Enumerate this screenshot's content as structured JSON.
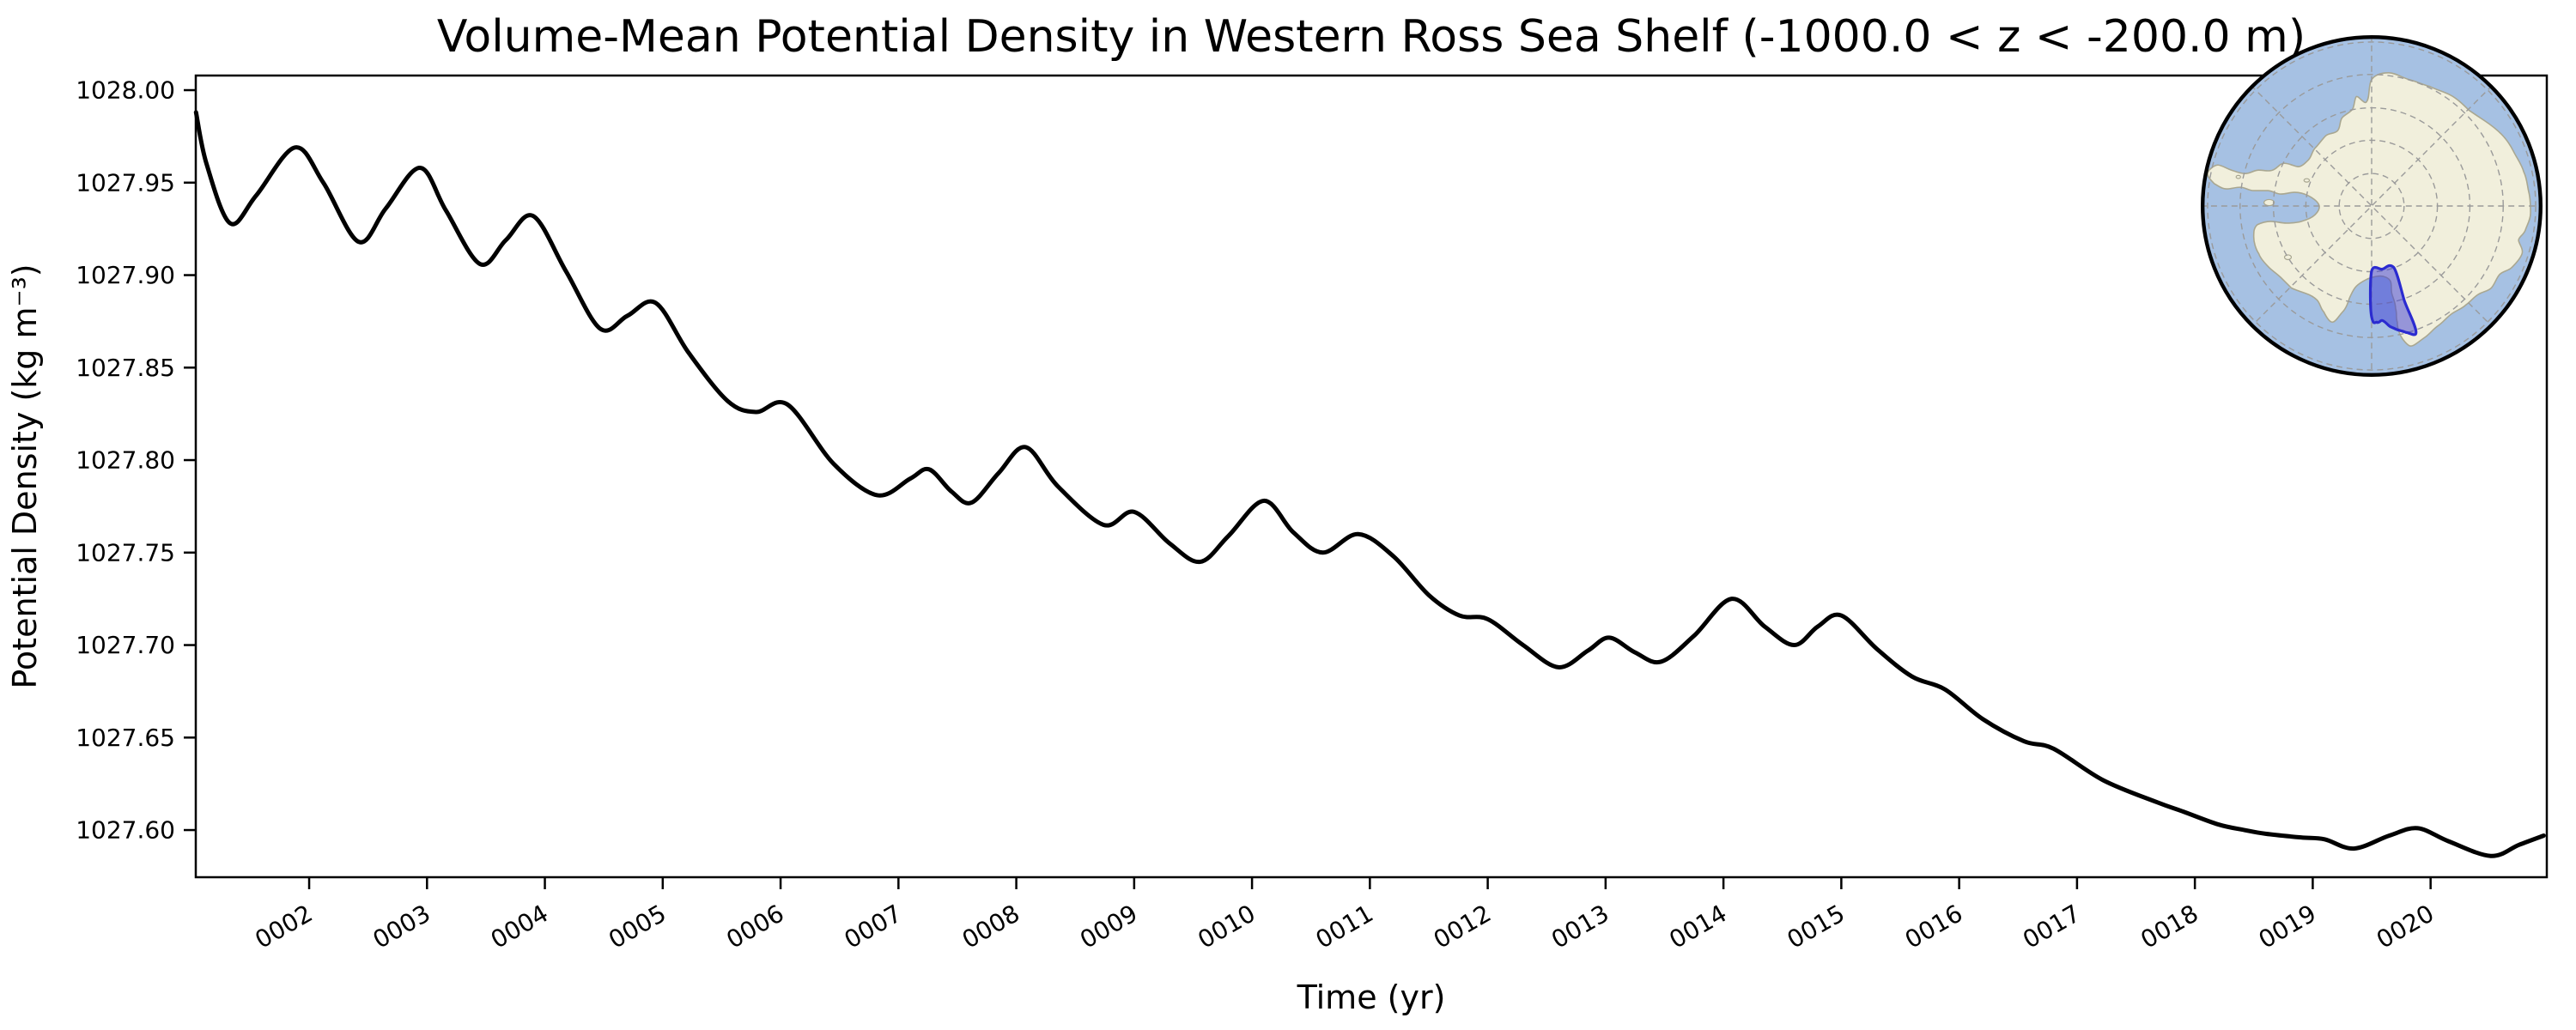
{
  "figure": {
    "background_color": "#ffffff",
    "accent_black": "#000000"
  },
  "chart_data": {
    "type": "line",
    "title": "Volume-Mean Potential Density in Western Ross Sea Shelf (-1000.0 < z < -200.0 m)",
    "xlabel": "Time (yr)",
    "ylabel": "Potential Density (kg m⁻³)",
    "xlim": [
      1.038,
      20.986
    ],
    "ylim": [
      1027.5745,
      1028.0079
    ],
    "grid": false,
    "legend": null,
    "xtick_labels": [
      "0002",
      "0003",
      "0004",
      "0005",
      "0006",
      "0007",
      "0008",
      "0009",
      "0010",
      "0011",
      "0012",
      "0013",
      "0014",
      "0015",
      "0016",
      "0017",
      "0018",
      "0019",
      "0020"
    ],
    "xtick_years": [
      2,
      3,
      4,
      5,
      6,
      7,
      8,
      9,
      10,
      11,
      12,
      13,
      14,
      15,
      16,
      17,
      18,
      19,
      20
    ],
    "xtick_rotation_deg": -30,
    "ytick_labels": [
      "1028.00",
      "1027.95",
      "1027.90",
      "1027.85",
      "1027.80",
      "1027.75",
      "1027.70",
      "1027.65",
      "1027.60"
    ],
    "ytick_values": [
      1028.0,
      1027.95,
      1027.9,
      1027.85,
      1027.8,
      1027.75,
      1027.7,
      1027.65,
      1027.6
    ],
    "series": [
      {
        "name": "volume_mean_potential_density",
        "color": "#000000",
        "line_width": 5,
        "points": [
          [
            1.04,
            1027.988
          ],
          [
            1.13,
            1027.96
          ],
          [
            1.33,
            1027.928
          ],
          [
            1.55,
            1027.943
          ],
          [
            1.88,
            1027.969
          ],
          [
            2.12,
            1027.95
          ],
          [
            2.42,
            1027.918
          ],
          [
            2.65,
            1027.936
          ],
          [
            2.94,
            1027.958
          ],
          [
            3.16,
            1027.935
          ],
          [
            3.45,
            1027.906
          ],
          [
            3.67,
            1027.919
          ],
          [
            3.9,
            1027.932
          ],
          [
            4.18,
            1027.902
          ],
          [
            4.47,
            1027.871
          ],
          [
            4.7,
            1027.878
          ],
          [
            4.94,
            1027.885
          ],
          [
            5.22,
            1027.858
          ],
          [
            5.55,
            1027.832
          ],
          [
            5.79,
            1027.826
          ],
          [
            6.06,
            1027.83
          ],
          [
            6.45,
            1027.798
          ],
          [
            6.82,
            1027.781
          ],
          [
            7.1,
            1027.79
          ],
          [
            7.26,
            1027.795
          ],
          [
            7.45,
            1027.783
          ],
          [
            7.62,
            1027.777
          ],
          [
            7.85,
            1027.793
          ],
          [
            8.08,
            1027.807
          ],
          [
            8.35,
            1027.786
          ],
          [
            8.74,
            1027.765
          ],
          [
            9.0,
            1027.772
          ],
          [
            9.3,
            1027.755
          ],
          [
            9.56,
            1027.745
          ],
          [
            9.8,
            1027.759
          ],
          [
            10.1,
            1027.778
          ],
          [
            10.35,
            1027.761
          ],
          [
            10.6,
            1027.75
          ],
          [
            10.9,
            1027.76
          ],
          [
            11.2,
            1027.748
          ],
          [
            11.5,
            1027.727
          ],
          [
            11.76,
            1027.716
          ],
          [
            12.0,
            1027.714
          ],
          [
            12.3,
            1027.7
          ],
          [
            12.6,
            1027.688
          ],
          [
            12.85,
            1027.697
          ],
          [
            13.03,
            1027.704
          ],
          [
            13.25,
            1027.696
          ],
          [
            13.47,
            1027.691
          ],
          [
            13.75,
            1027.705
          ],
          [
            14.07,
            1027.725
          ],
          [
            14.35,
            1027.71
          ],
          [
            14.6,
            1027.7
          ],
          [
            14.8,
            1027.71
          ],
          [
            15.0,
            1027.716
          ],
          [
            15.3,
            1027.698
          ],
          [
            15.6,
            1027.683
          ],
          [
            15.88,
            1027.676
          ],
          [
            16.2,
            1027.66
          ],
          [
            16.55,
            1027.648
          ],
          [
            16.8,
            1027.644
          ],
          [
            17.22,
            1027.627
          ],
          [
            17.68,
            1027.615
          ],
          [
            17.9,
            1027.61
          ],
          [
            18.2,
            1027.603
          ],
          [
            18.42,
            1027.6
          ],
          [
            18.6,
            1027.598
          ],
          [
            18.9,
            1027.596
          ],
          [
            19.1,
            1027.595
          ],
          [
            19.35,
            1027.59
          ],
          [
            19.65,
            1027.597
          ],
          [
            19.89,
            1027.601
          ],
          [
            20.15,
            1027.594
          ],
          [
            20.51,
            1027.586
          ],
          [
            20.75,
            1027.592
          ],
          [
            20.96,
            1027.597
          ]
        ]
      }
    ]
  },
  "inset_map": {
    "name": "antarctica-polar-inset",
    "description": "South polar view of Antarctica with the Western Ross Sea Shelf region highlighted",
    "highlight_region": "Western Ross Sea Shelf",
    "colors": {
      "ocean": "#a6c1e3",
      "land": "#f1efdc",
      "coastline": "#a9a791",
      "graticule": "#9a9a9a",
      "region_fill": "rgba(60,60,212,0.5)",
      "region_edge": "#2b2bd0",
      "rim": "#000000"
    },
    "graticule_radii": [
      0.19,
      0.385,
      0.575,
      0.77,
      0.96
    ],
    "graticule_meridians_deg": [
      0,
      45,
      90,
      135
    ],
    "region_polygon": [
      [
        0.0,
        0.384
      ],
      [
        0.063,
        0.37
      ],
      [
        0.126,
        0.357
      ],
      [
        0.19,
        0.545
      ],
      [
        0.258,
        0.737
      ],
      [
        0.2,
        0.737
      ],
      [
        0.14,
        0.72
      ],
      [
        0.1,
        0.7
      ],
      [
        0.06,
        0.672
      ],
      [
        0.03,
        0.683
      ],
      [
        0.0,
        0.652
      ]
    ]
  }
}
